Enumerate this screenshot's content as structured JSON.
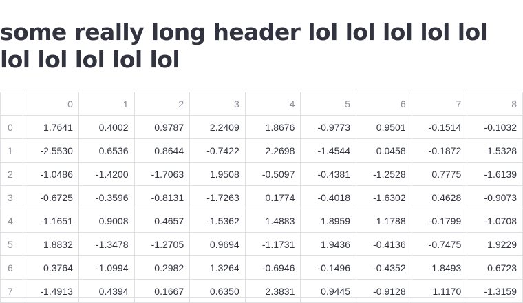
{
  "header": {
    "title": "some really long header lol lol lol lol lol lol lol lol lol lol"
  },
  "table": {
    "columns": [
      "0",
      "1",
      "2",
      "3",
      "4",
      "5",
      "6",
      "7",
      "8"
    ],
    "rows": [
      {
        "index": "0",
        "cells": [
          "1.7641",
          "0.4002",
          "0.9787",
          "2.2409",
          "1.8676",
          "-0.9773",
          "0.9501",
          "-0.1514",
          "-0.1032"
        ]
      },
      {
        "index": "1",
        "cells": [
          "-2.5530",
          "0.6536",
          "0.8644",
          "-0.7422",
          "2.2698",
          "-1.4544",
          "0.0458",
          "-0.1872",
          "1.5328"
        ]
      },
      {
        "index": "2",
        "cells": [
          "-1.0486",
          "-1.4200",
          "-1.7063",
          "1.9508",
          "-0.5097",
          "-0.4381",
          "-1.2528",
          "0.7775",
          "-1.6139"
        ]
      },
      {
        "index": "3",
        "cells": [
          "-0.6725",
          "-0.3596",
          "-0.8131",
          "-1.7263",
          "0.1774",
          "-0.4018",
          "-1.6302",
          "0.4628",
          "-0.9073"
        ]
      },
      {
        "index": "4",
        "cells": [
          "-1.1651",
          "0.9008",
          "0.4657",
          "-1.5362",
          "1.4883",
          "1.8959",
          "1.1788",
          "-0.1799",
          "-1.0708"
        ]
      },
      {
        "index": "5",
        "cells": [
          "1.8832",
          "-1.3478",
          "-1.2705",
          "0.9694",
          "-1.1731",
          "1.9436",
          "-0.4136",
          "-0.7475",
          "1.9229"
        ]
      },
      {
        "index": "6",
        "cells": [
          "0.3764",
          "-1.0994",
          "0.2982",
          "1.3264",
          "-0.6946",
          "-0.1496",
          "-0.4352",
          "1.8493",
          "0.6723"
        ]
      },
      {
        "index": "7",
        "cells": [
          "-1.4913",
          "0.4394",
          "0.1667",
          "0.6350",
          "2.3831",
          "0.9445",
          "-0.9128",
          "1.1170",
          "-1.3159"
        ]
      }
    ]
  }
}
